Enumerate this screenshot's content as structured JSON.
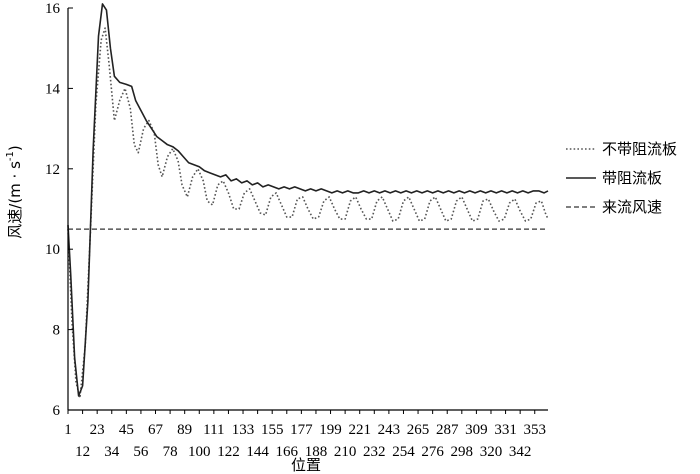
{
  "chart_data": {
    "type": "line",
    "xlabel": "位置",
    "ylabel_main": "风速/(m · s",
    "ylabel_sup": "-1",
    "ylabel_close": ")",
    "ylim": [
      6,
      16
    ],
    "yticks": [
      6,
      8,
      10,
      12,
      14,
      16
    ],
    "xlim": [
      1,
      363
    ],
    "xticks_row1": [
      "1",
      "23",
      "45",
      "67",
      "89",
      "111",
      "133",
      "155",
      "177",
      "199",
      "221",
      "243",
      "265",
      "287",
      "309",
      "331",
      "353"
    ],
    "xticks_row2": [
      "12",
      "34",
      "56",
      "78",
      "100",
      "122",
      "144",
      "166",
      "188",
      "210",
      "232",
      "254",
      "276",
      "298",
      "320",
      "342"
    ],
    "xtick_values_row1": [
      1,
      23,
      45,
      67,
      89,
      111,
      133,
      155,
      177,
      199,
      221,
      243,
      265,
      287,
      309,
      331,
      353
    ],
    "xtick_values_row2": [
      12,
      34,
      56,
      78,
      100,
      122,
      144,
      166,
      188,
      210,
      232,
      254,
      276,
      298,
      320,
      342
    ],
    "legend_position": "right",
    "series": [
      {
        "name": "不带阻流板",
        "style": "dotted",
        "color": "#555555",
        "points": [
          [
            1,
            10.5
          ],
          [
            4,
            8.2
          ],
          [
            7,
            6.7
          ],
          [
            10,
            6.3
          ],
          [
            14,
            7.6
          ],
          [
            18,
            10.5
          ],
          [
            22,
            13.6
          ],
          [
            26,
            15.2
          ],
          [
            29,
            15.5
          ],
          [
            32,
            14.6
          ],
          [
            36,
            13.2
          ],
          [
            40,
            13.7
          ],
          [
            44,
            14.0
          ],
          [
            48,
            13.5
          ],
          [
            51,
            12.6
          ],
          [
            54,
            12.4
          ],
          [
            58,
            13.0
          ],
          [
            62,
            13.2
          ],
          [
            66,
            12.9
          ],
          [
            69,
            12.1
          ],
          [
            72,
            11.8
          ],
          [
            76,
            12.3
          ],
          [
            80,
            12.5
          ],
          [
            84,
            12.2
          ],
          [
            87,
            11.6
          ],
          [
            91,
            11.3
          ],
          [
            95,
            11.8
          ],
          [
            99,
            12.0
          ],
          [
            103,
            11.7
          ],
          [
            106,
            11.2
          ],
          [
            110,
            11.1
          ],
          [
            114,
            11.6
          ],
          [
            118,
            11.7
          ],
          [
            122,
            11.4
          ],
          [
            126,
            11.0
          ],
          [
            130,
            11.0
          ],
          [
            134,
            11.4
          ],
          [
            138,
            11.5
          ],
          [
            142,
            11.2
          ],
          [
            146,
            10.9
          ],
          [
            150,
            10.85
          ],
          [
            154,
            11.3
          ],
          [
            158,
            11.4
          ],
          [
            162,
            11.1
          ],
          [
            166,
            10.8
          ],
          [
            170,
            10.8
          ],
          [
            174,
            11.25
          ],
          [
            178,
            11.3
          ],
          [
            182,
            11.0
          ],
          [
            186,
            10.75
          ],
          [
            190,
            10.8
          ],
          [
            194,
            11.2
          ],
          [
            198,
            11.3
          ],
          [
            202,
            11.0
          ],
          [
            206,
            10.75
          ],
          [
            210,
            10.75
          ],
          [
            214,
            11.2
          ],
          [
            218,
            11.3
          ],
          [
            222,
            11.0
          ],
          [
            226,
            10.75
          ],
          [
            230,
            10.75
          ],
          [
            234,
            11.2
          ],
          [
            238,
            11.3
          ],
          [
            242,
            11.0
          ],
          [
            246,
            10.7
          ],
          [
            250,
            10.75
          ],
          [
            254,
            11.2
          ],
          [
            258,
            11.3
          ],
          [
            262,
            11.0
          ],
          [
            266,
            10.7
          ],
          [
            270,
            10.75
          ],
          [
            274,
            11.2
          ],
          [
            278,
            11.3
          ],
          [
            282,
            11.0
          ],
          [
            286,
            10.7
          ],
          [
            290,
            10.75
          ],
          [
            294,
            11.2
          ],
          [
            298,
            11.3
          ],
          [
            302,
            11.0
          ],
          [
            306,
            10.7
          ],
          [
            310,
            10.75
          ],
          [
            314,
            11.2
          ],
          [
            318,
            11.25
          ],
          [
            322,
            10.95
          ],
          [
            326,
            10.7
          ],
          [
            330,
            10.75
          ],
          [
            334,
            11.15
          ],
          [
            338,
            11.25
          ],
          [
            342,
            10.95
          ],
          [
            346,
            10.7
          ],
          [
            350,
            10.75
          ],
          [
            354,
            11.15
          ],
          [
            358,
            11.2
          ],
          [
            361,
            10.9
          ],
          [
            363,
            10.75
          ]
        ]
      },
      {
        "name": "带阻流板",
        "style": "solid",
        "color": "#222222",
        "points": [
          [
            1,
            10.6
          ],
          [
            3,
            9.4
          ],
          [
            6,
            7.3
          ],
          [
            9,
            6.35
          ],
          [
            12,
            6.6
          ],
          [
            16,
            8.7
          ],
          [
            20,
            12.5
          ],
          [
            24,
            15.3
          ],
          [
            27,
            16.1
          ],
          [
            30,
            15.95
          ],
          [
            33,
            15.0
          ],
          [
            36,
            14.3
          ],
          [
            40,
            14.15
          ],
          [
            45,
            14.1
          ],
          [
            49,
            14.05
          ],
          [
            52,
            13.7
          ],
          [
            56,
            13.45
          ],
          [
            60,
            13.2
          ],
          [
            64,
            13.0
          ],
          [
            68,
            12.8
          ],
          [
            72,
            12.7
          ],
          [
            76,
            12.6
          ],
          [
            80,
            12.55
          ],
          [
            84,
            12.45
          ],
          [
            88,
            12.3
          ],
          [
            92,
            12.15
          ],
          [
            96,
            12.1
          ],
          [
            100,
            12.05
          ],
          [
            104,
            11.95
          ],
          [
            108,
            11.9
          ],
          [
            112,
            11.85
          ],
          [
            116,
            11.8
          ],
          [
            120,
            11.85
          ],
          [
            124,
            11.7
          ],
          [
            128,
            11.75
          ],
          [
            132,
            11.65
          ],
          [
            136,
            11.7
          ],
          [
            140,
            11.6
          ],
          [
            144,
            11.65
          ],
          [
            148,
            11.55
          ],
          [
            152,
            11.6
          ],
          [
            156,
            11.55
          ],
          [
            160,
            11.5
          ],
          [
            164,
            11.55
          ],
          [
            168,
            11.5
          ],
          [
            172,
            11.55
          ],
          [
            176,
            11.5
          ],
          [
            180,
            11.45
          ],
          [
            184,
            11.5
          ],
          [
            188,
            11.45
          ],
          [
            192,
            11.5
          ],
          [
            196,
            11.45
          ],
          [
            200,
            11.4
          ],
          [
            204,
            11.45
          ],
          [
            208,
            11.4
          ],
          [
            212,
            11.45
          ],
          [
            216,
            11.4
          ],
          [
            220,
            11.4
          ],
          [
            224,
            11.45
          ],
          [
            228,
            11.4
          ],
          [
            232,
            11.45
          ],
          [
            236,
            11.4
          ],
          [
            240,
            11.45
          ],
          [
            244,
            11.4
          ],
          [
            248,
            11.45
          ],
          [
            252,
            11.4
          ],
          [
            256,
            11.45
          ],
          [
            260,
            11.4
          ],
          [
            264,
            11.45
          ],
          [
            268,
            11.4
          ],
          [
            272,
            11.45
          ],
          [
            276,
            11.4
          ],
          [
            280,
            11.45
          ],
          [
            284,
            11.4
          ],
          [
            288,
            11.45
          ],
          [
            292,
            11.4
          ],
          [
            296,
            11.45
          ],
          [
            300,
            11.4
          ],
          [
            304,
            11.45
          ],
          [
            308,
            11.4
          ],
          [
            312,
            11.45
          ],
          [
            316,
            11.4
          ],
          [
            320,
            11.45
          ],
          [
            324,
            11.4
          ],
          [
            328,
            11.45
          ],
          [
            332,
            11.4
          ],
          [
            336,
            11.45
          ],
          [
            340,
            11.4
          ],
          [
            344,
            11.45
          ],
          [
            348,
            11.4
          ],
          [
            352,
            11.45
          ],
          [
            356,
            11.45
          ],
          [
            360,
            11.4
          ],
          [
            363,
            11.45
          ]
        ]
      },
      {
        "name": "来流风速",
        "style": "dashed",
        "color": "#333333",
        "points": [
          [
            1,
            10.5
          ],
          [
            363,
            10.5
          ]
        ]
      }
    ]
  }
}
